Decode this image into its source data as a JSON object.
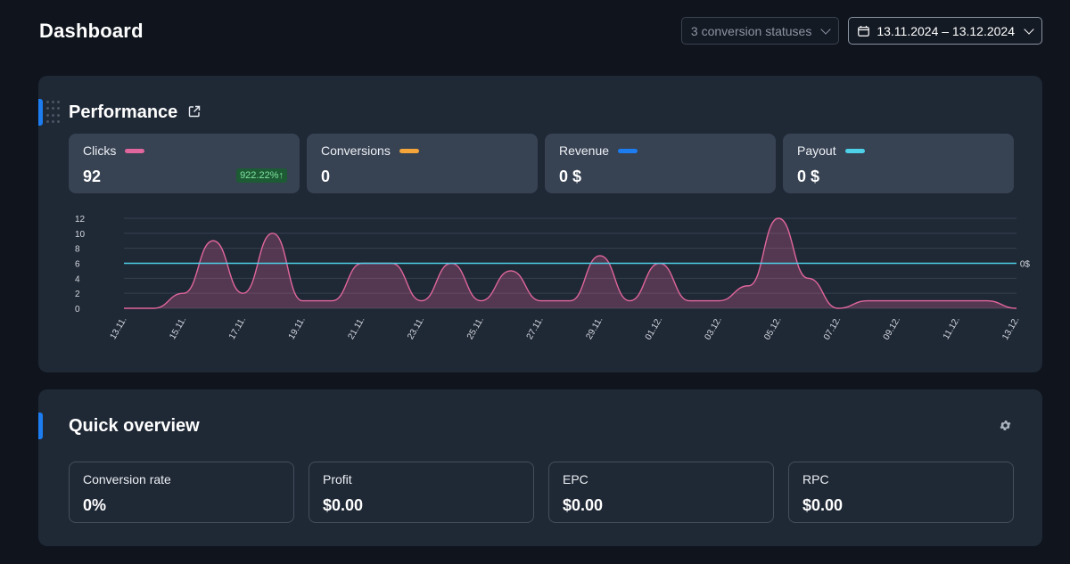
{
  "header": {
    "title": "Dashboard",
    "status_filter": "3 conversion statuses",
    "date_range": "13.11.2024 – 13.12.2024"
  },
  "performance": {
    "title": "Performance",
    "metrics": [
      {
        "label": "Clicks",
        "value": "92",
        "badge": "922.22%↑",
        "color": "#e0669c"
      },
      {
        "label": "Conversions",
        "value": "0",
        "color": "#f5a53a"
      },
      {
        "label": "Revenue",
        "value": "0 $",
        "color": "#1c7cf0"
      },
      {
        "label": "Payout",
        "value": "0 $",
        "color": "#4dd0e8"
      }
    ]
  },
  "chart_data": {
    "type": "area",
    "x": [
      "13.11.",
      "14.11.",
      "15.11.",
      "16.11.",
      "17.11.",
      "18.11.",
      "19.11.",
      "20.11.",
      "21.11.",
      "22.11.",
      "23.11.",
      "24.11.",
      "25.11.",
      "26.11.",
      "27.11.",
      "28.11.",
      "29.11.",
      "30.11.",
      "01.12.",
      "02.12.",
      "03.12.",
      "04.12.",
      "05.12.",
      "06.12.",
      "07.12.",
      "08.12.",
      "09.12.",
      "10.12.",
      "11.12.",
      "12.12.",
      "13.12."
    ],
    "x_tick_labels": [
      "13.11.",
      "15.11.",
      "17.11.",
      "19.11.",
      "21.11.",
      "23.11.",
      "25.11.",
      "27.11.",
      "29.11.",
      "01.12.",
      "03.12.",
      "05.12.",
      "07.12.",
      "09.12.",
      "11.12.",
      "13.12."
    ],
    "series": [
      {
        "name": "Clicks",
        "color": "#e0669c",
        "values": [
          0,
          0,
          2,
          9,
          2,
          10,
          1,
          1,
          6,
          6,
          1,
          6,
          1,
          5,
          1,
          1,
          7,
          1,
          6,
          1,
          1,
          3,
          12,
          4,
          0,
          1,
          1,
          1,
          1,
          1,
          0
        ]
      },
      {
        "name": "Revenue",
        "color": "#4dd0e8",
        "values": [
          0,
          0,
          0,
          0,
          0,
          0,
          0,
          0,
          0,
          0,
          0,
          0,
          0,
          0,
          0,
          0,
          0,
          0,
          0,
          0,
          0,
          0,
          0,
          0,
          0,
          0,
          0,
          0,
          0,
          0,
          0
        ]
      }
    ],
    "y_ticks": [
      0,
      2,
      4,
      6,
      8,
      10,
      12
    ],
    "ylim": [
      0,
      12
    ],
    "right_axis_label": "0$",
    "grid": true
  },
  "quick_overview": {
    "title": "Quick overview",
    "items": [
      {
        "label": "Conversion rate",
        "value": "0%"
      },
      {
        "label": "Profit",
        "value": "$0.00"
      },
      {
        "label": "EPC",
        "value": "$0.00"
      },
      {
        "label": "RPC",
        "value": "$0.00"
      }
    ]
  }
}
